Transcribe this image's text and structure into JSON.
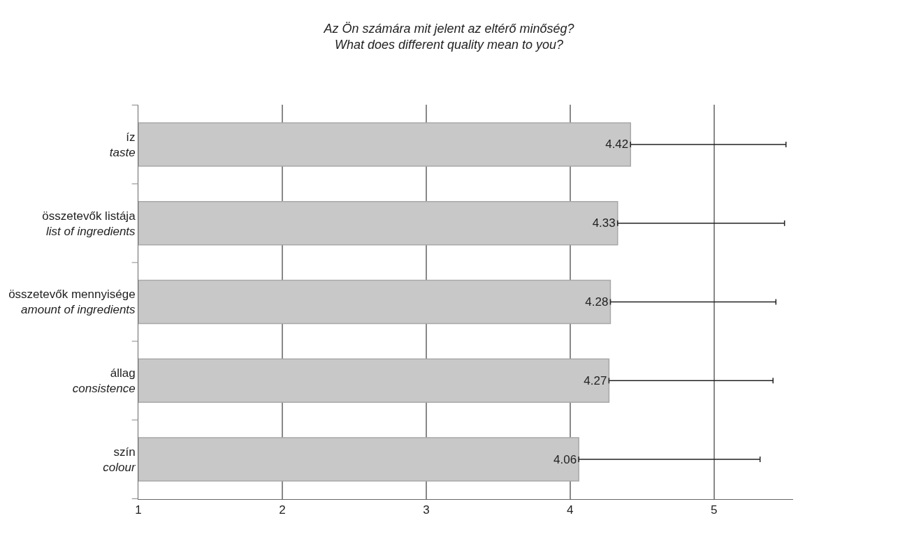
{
  "chart_data": {
    "type": "bar",
    "orientation": "horizontal",
    "title": "Az Ön számára mit jelent az eltérő minőség?\nWhat does different quality mean to you?",
    "categories": [
      "íz\ntaste",
      "összetevők listája\nlist of ingredients",
      "összetevők mennyisége\namount of ingredients",
      "állag\nconsistence",
      "szín\ncolour"
    ],
    "values": [
      4.42,
      4.33,
      4.28,
      4.27,
      4.06
    ],
    "errors": [
      [
        4.42,
        5.5
      ],
      [
        4.33,
        5.49
      ],
      [
        4.28,
        5.43
      ],
      [
        4.27,
        5.41
      ],
      [
        4.06,
        5.32
      ]
    ],
    "color": "#c8c8c8",
    "data_labels": true,
    "xlim": [
      1,
      5.55
    ],
    "xticks": [
      1,
      2,
      3,
      4,
      5
    ],
    "grid": "x",
    "legend": false
  }
}
